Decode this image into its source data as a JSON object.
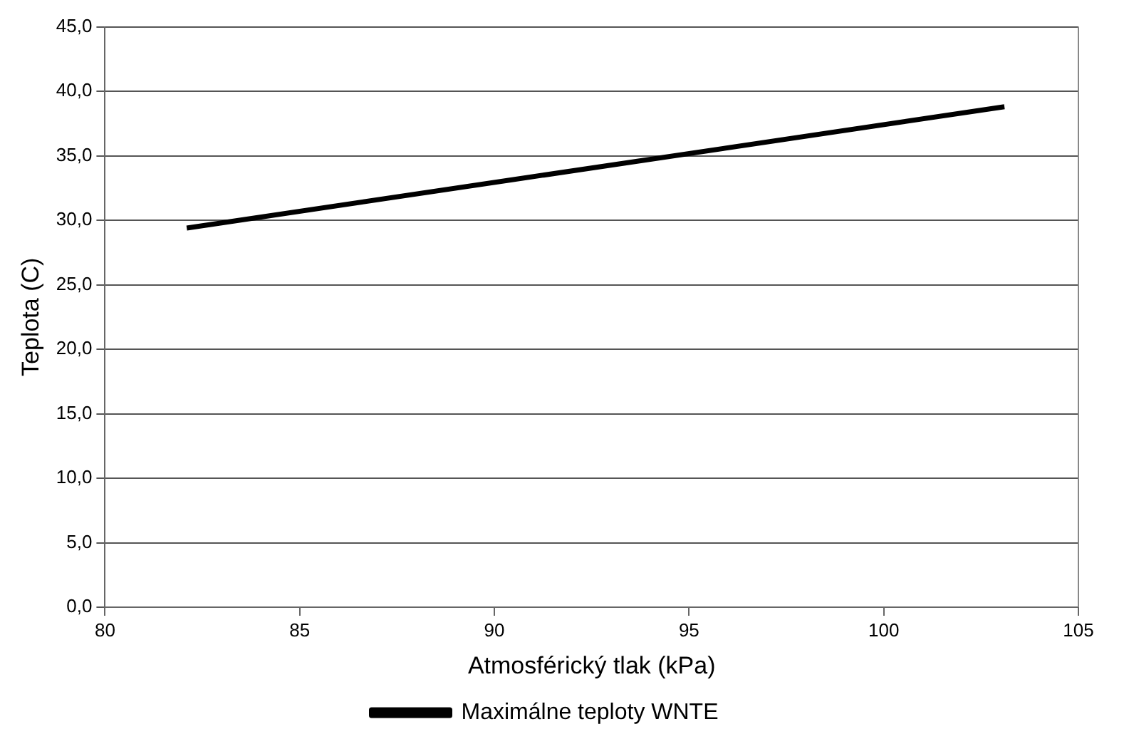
{
  "chart_data": {
    "type": "line",
    "xlabel": "Atmosférický tlak (kPa)",
    "ylabel": "Teplota (C)",
    "series": [
      {
        "name": "Maximálne teploty WNTE",
        "color": "#000000",
        "x": [
          82.1,
          103.1
        ],
        "values": [
          29.4,
          38.8
        ]
      }
    ],
    "xlim": [
      80,
      105
    ],
    "xticks": [
      80,
      85,
      90,
      95,
      100,
      105
    ],
    "ylim": [
      0,
      45
    ],
    "yticks": [
      {
        "value": 0,
        "label": "0,0"
      },
      {
        "value": 5,
        "label": "5,0"
      },
      {
        "value": 10,
        "label": "10,0"
      },
      {
        "value": 15,
        "label": "15,0"
      },
      {
        "value": 20,
        "label": "20,0"
      },
      {
        "value": 25,
        "label": "25,0"
      },
      {
        "value": 30,
        "label": "30,0"
      },
      {
        "value": 35,
        "label": "35,0"
      },
      {
        "value": 40,
        "label": "40,0"
      },
      {
        "value": 45,
        "label": "45,0"
      }
    ],
    "grid": "y",
    "legend": "bottom",
    "marker": "none",
    "line_style": "solid"
  }
}
